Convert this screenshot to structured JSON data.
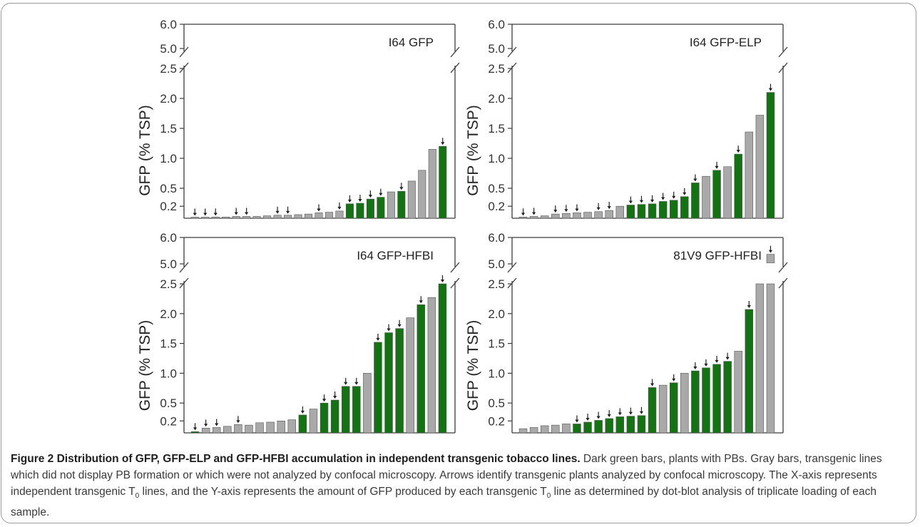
{
  "figure": {
    "caption_title": "Figure 2 Distribution of GFP, GFP-ELP and GFP-HFBI accumulation in independent transgenic tobacco lines.",
    "caption_text_1": " Dark green bars, plants with PBs. Gray bars, transgenic lines which did not display PB formation or which were not analyzed by confocal microscopy. Arrows identify transgenic plants analyzed by confocal microscopy. The X-axis represents independent transgenic T",
    "caption_sub_1": "0",
    "caption_text_2": " lines, and the Y-axis represents the amount of GFP produced by each transgenic T",
    "caption_sub_2": "0",
    "caption_text_3": " line as determined by dot-blot analysis of triplicate loading of each sample."
  },
  "colors": {
    "pb": "#137313",
    "other": "#a9a9a9",
    "axis": "#3c3c3c",
    "arrow": "#222222"
  },
  "chart_data": [
    {
      "type": "bar",
      "title": "I64 GFP",
      "ylabel": "GFP (% TSP)",
      "broken_axis": true,
      "ylim_lower": [
        0,
        2.5
      ],
      "ylim_upper": [
        5.0,
        6.0
      ],
      "lower_ticks": [
        "0.2",
        "0.5",
        "1.0",
        "1.5",
        "2.0",
        "2.5"
      ],
      "upper_ticks": [
        "5.0",
        "6.0"
      ],
      "values": [
        0.01,
        0.01,
        0.02,
        0.02,
        0.03,
        0.03,
        0.03,
        0.04,
        0.05,
        0.05,
        0.06,
        0.07,
        0.09,
        0.1,
        0.12,
        0.24,
        0.25,
        0.32,
        0.35,
        0.44,
        0.45,
        0.62,
        0.8,
        1.15,
        1.2
      ],
      "pb": [
        0,
        0,
        0,
        0,
        0,
        0,
        0,
        0,
        0,
        0,
        0,
        0,
        0,
        0,
        0,
        1,
        1,
        1,
        1,
        0,
        1,
        0,
        0,
        0,
        1
      ],
      "arrow": [
        1,
        1,
        1,
        0,
        1,
        1,
        0,
        0,
        1,
        1,
        0,
        0,
        1,
        0,
        1,
        1,
        1,
        1,
        1,
        0,
        1,
        0,
        0,
        0,
        1
      ]
    },
    {
      "type": "bar",
      "title": "I64 GFP-ELP",
      "ylabel": "GFP (% TSP)",
      "broken_axis": true,
      "ylim_lower": [
        0,
        2.5
      ],
      "ylim_upper": [
        5.0,
        6.0
      ],
      "lower_ticks": [
        "0.2",
        "0.5",
        "1.0",
        "1.5",
        "2.0",
        "2.5"
      ],
      "upper_ticks": [
        "5.0",
        "6.0"
      ],
      "values": [
        0.02,
        0.03,
        0.04,
        0.07,
        0.08,
        0.09,
        0.1,
        0.11,
        0.13,
        0.2,
        0.22,
        0.23,
        0.24,
        0.28,
        0.3,
        0.36,
        0.59,
        0.7,
        0.8,
        0.86,
        1.07,
        1.44,
        1.72,
        2.1
      ],
      "pb": [
        0,
        0,
        0,
        0,
        0,
        0,
        0,
        0,
        0,
        0,
        1,
        1,
        1,
        1,
        1,
        1,
        1,
        0,
        1,
        0,
        1,
        0,
        0,
        1
      ],
      "arrow": [
        1,
        1,
        0,
        1,
        1,
        1,
        0,
        1,
        1,
        0,
        1,
        1,
        1,
        1,
        1,
        1,
        1,
        0,
        1,
        0,
        1,
        0,
        0,
        1
      ]
    },
    {
      "type": "bar",
      "title": "I64 GFP-HFBI",
      "ylabel": "GFP (% TSP)",
      "broken_axis": true,
      "ylim_lower": [
        0,
        2.5
      ],
      "ylim_upper": [
        5.0,
        6.0
      ],
      "lower_ticks": [
        "0.2",
        "0.5",
        "1.0",
        "1.5",
        "2.0",
        "2.5"
      ],
      "upper_ticks": [
        "5.0",
        "6.0"
      ],
      "values": [
        0.02,
        0.08,
        0.09,
        0.11,
        0.14,
        0.13,
        0.17,
        0.18,
        0.2,
        0.22,
        0.3,
        0.4,
        0.5,
        0.55,
        0.78,
        0.78,
        1.0,
        1.52,
        1.68,
        1.75,
        1.93,
        2.15,
        2.27,
        2.5
      ],
      "pb": [
        1,
        0,
        0,
        0,
        0,
        0,
        0,
        0,
        0,
        0,
        1,
        0,
        1,
        1,
        1,
        1,
        0,
        1,
        1,
        1,
        0,
        1,
        0,
        1
      ],
      "arrow": [
        1,
        1,
        1,
        0,
        1,
        0,
        0,
        0,
        0,
        0,
        1,
        0,
        1,
        1,
        1,
        1,
        0,
        1,
        1,
        1,
        0,
        1,
        0,
        1
      ]
    },
    {
      "type": "bar",
      "title": "81V9 GFP-HFBI",
      "ylabel": "GFP (% TSP)",
      "broken_axis": true,
      "ylim_lower": [
        0,
        2.5
      ],
      "ylim_upper": [
        5.0,
        6.0
      ],
      "lower_ticks": [
        "0.2",
        "0.5",
        "1.0",
        "1.5",
        "2.0",
        "2.5"
      ],
      "upper_ticks": [
        "5.0",
        "6.0"
      ],
      "values": [
        0.07,
        0.09,
        0.12,
        0.13,
        0.15,
        0.15,
        0.18,
        0.21,
        0.24,
        0.27,
        0.28,
        0.29,
        0.76,
        0.8,
        0.84,
        1.0,
        1.04,
        1.09,
        1.15,
        1.2,
        1.37,
        2.07,
        2.5,
        2.5
      ],
      "pb": [
        0,
        0,
        0,
        0,
        0,
        1,
        1,
        1,
        1,
        1,
        1,
        1,
        1,
        0,
        1,
        0,
        1,
        1,
        1,
        1,
        0,
        1,
        0,
        0
      ],
      "arrow": [
        0,
        0,
        0,
        0,
        0,
        1,
        1,
        1,
        1,
        1,
        1,
        1,
        1,
        0,
        1,
        0,
        1,
        1,
        1,
        1,
        0,
        1,
        0,
        0
      ],
      "outlier": {
        "value": 5.2,
        "pb": 0,
        "arrow": 1
      }
    }
  ]
}
